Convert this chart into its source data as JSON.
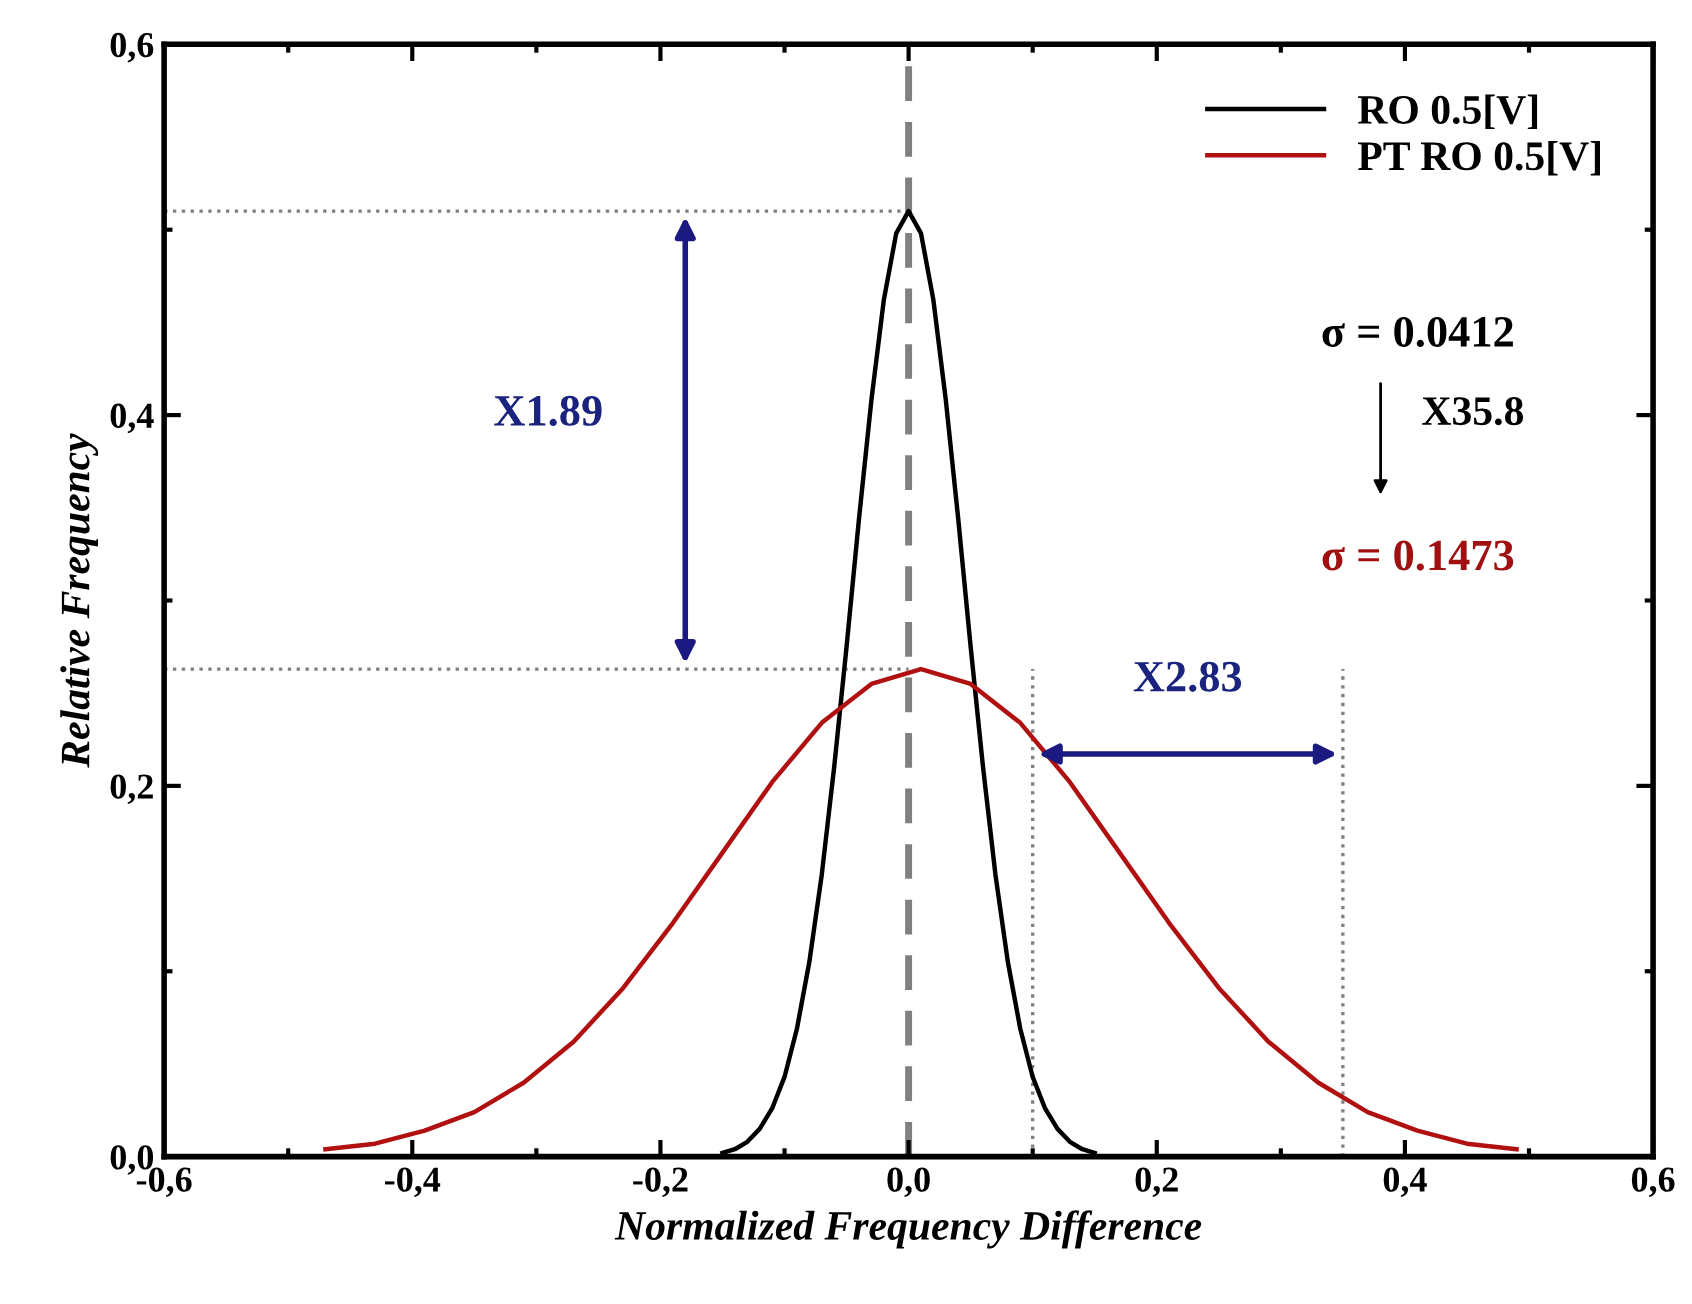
{
  "chart_data": {
    "type": "line",
    "xlabel": "Normalized Frequency Difference",
    "ylabel": "Relative Frequency",
    "series": [
      {
        "name": "RO 0.5[V]",
        "color": "#000000",
        "x": [
          -0.15,
          -0.14,
          -0.13,
          -0.12,
          -0.11,
          -0.1,
          -0.09,
          -0.08,
          -0.07,
          -0.06,
          -0.05,
          -0.04,
          -0.03,
          -0.02,
          -0.01,
          0,
          0.01,
          0.02,
          0.03,
          0.04,
          0.05,
          0.06,
          0.07,
          0.08,
          0.09,
          0.1,
          0.11,
          0.12,
          0.13,
          0.14,
          0.15
        ],
        "values": [
          0.002,
          0.004,
          0.008,
          0.015,
          0.026,
          0.043,
          0.069,
          0.105,
          0.152,
          0.21,
          0.275,
          0.344,
          0.408,
          0.462,
          0.498,
          0.51,
          0.498,
          0.462,
          0.408,
          0.344,
          0.275,
          0.21,
          0.152,
          0.105,
          0.069,
          0.043,
          0.026,
          0.015,
          0.008,
          0.004,
          0.002
        ]
      },
      {
        "name": "PT RO 0.5[V]",
        "color": "#b01010",
        "x": [
          -0.47,
          -0.43,
          -0.39,
          -0.35,
          -0.31,
          -0.27,
          -0.23,
          -0.19,
          -0.15,
          -0.11,
          -0.07,
          -0.03,
          0.01,
          0.05,
          0.09,
          0.13,
          0.17,
          0.21,
          0.25,
          0.29,
          0.33,
          0.37,
          0.41,
          0.45,
          0.49
        ],
        "values": [
          0.004,
          0.007,
          0.014,
          0.024,
          0.04,
          0.062,
          0.091,
          0.126,
          0.164,
          0.202,
          0.234,
          0.255,
          0.263,
          0.255,
          0.234,
          0.202,
          0.164,
          0.126,
          0.091,
          0.062,
          0.04,
          0.024,
          0.014,
          0.007,
          0.004
        ]
      }
    ],
    "xlim": [
      -0.6,
      0.6
    ],
    "ylim": [
      0,
      0.6
    ],
    "xticks": [
      {
        "value": -0.6,
        "label": "-0,6"
      },
      {
        "value": -0.4,
        "label": "-0,4"
      },
      {
        "value": -0.2,
        "label": "-0,2"
      },
      {
        "value": 0,
        "label": "0,0"
      },
      {
        "value": 0.2,
        "label": "0,2"
      },
      {
        "value": 0.4,
        "label": "0,4"
      },
      {
        "value": 0.6,
        "label": "0,6"
      }
    ],
    "yticks": [
      {
        "value": 0,
        "label": "0,0"
      },
      {
        "value": 0.2,
        "label": "0,2"
      },
      {
        "value": 0.4,
        "label": "0,4"
      },
      {
        "value": 0.6,
        "label": "0,6"
      }
    ],
    "ref_lines": [
      {
        "axis": "x",
        "value": 0,
        "color": "#808080",
        "line_style": "dashed"
      },
      {
        "axis": "y",
        "value": 0.51,
        "color": "#808080",
        "line_style": "dotted"
      },
      {
        "axis": "y",
        "value": 0.263,
        "color": "#808080",
        "line_style": "dotted"
      },
      {
        "axis": "x",
        "value": 0.1,
        "color": "#808080",
        "line_style": "dotted"
      },
      {
        "axis": "x",
        "value": 0.35,
        "color": "#808080",
        "line_style": "dotted"
      }
    ],
    "annotations": [
      "X1.89",
      "X2.83",
      "σ = 0.0412",
      "X35.8",
      "σ = 0.1473"
    ],
    "legend": "top right",
    "grid": false,
    "marker": "none",
    "line_style": "solid"
  }
}
